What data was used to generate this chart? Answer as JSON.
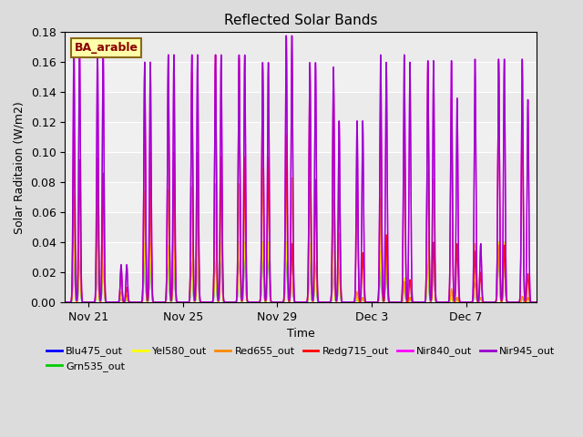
{
  "title": "Reflected Solar Bands",
  "xlabel": "Time",
  "ylabel": "Solar Raditaion (W/m2)",
  "annotation": "BA_arable",
  "ylim": [
    0,
    0.18
  ],
  "yticks": [
    0.0,
    0.02,
    0.04,
    0.06,
    0.08,
    0.1,
    0.12,
    0.14,
    0.16,
    0.18
  ],
  "xtick_labels": [
    "Nov 21",
    "Nov 25",
    "Nov 29",
    "Dec 3",
    "Dec 7"
  ],
  "xtick_positions": [
    1,
    5,
    9,
    13,
    17
  ],
  "series": [
    {
      "label": "Blu475_out",
      "color": "#0000FF"
    },
    {
      "label": "Grn535_out",
      "color": "#00CC00"
    },
    {
      "label": "Yel580_out",
      "color": "#FFFF00"
    },
    {
      "label": "Red655_out",
      "color": "#FF8800"
    },
    {
      "label": "Redg715_out",
      "color": "#FF0000"
    },
    {
      "label": "Nir840_out",
      "color": "#FF00FF"
    },
    {
      "label": "Nir945_out",
      "color": "#9900CC"
    }
  ],
  "bg_color": "#DCDCDC",
  "plot_bg_color": "#F0F0F0",
  "n_days": 20,
  "peaks_per_series": {
    "Blu475_out": [
      0.039,
      0.036,
      0.004,
      0.039,
      0.036,
      0.038,
      0.039,
      0.039,
      0.039,
      0.039,
      0.038,
      0.033,
      0.003,
      0.033,
      0.016,
      0.039,
      0.004,
      0.02,
      0.039,
      0.003
    ],
    "Grn535_out": [
      0.04,
      0.037,
      0.004,
      0.039,
      0.037,
      0.039,
      0.04,
      0.04,
      0.04,
      0.04,
      0.039,
      0.034,
      0.003,
      0.034,
      0.016,
      0.04,
      0.004,
      0.02,
      0.04,
      0.003
    ],
    "Yel580_out": [
      0.04,
      0.037,
      0.004,
      0.039,
      0.037,
      0.039,
      0.04,
      0.04,
      0.04,
      0.04,
      0.039,
      0.034,
      0.003,
      0.034,
      0.016,
      0.04,
      0.004,
      0.02,
      0.04,
      0.003
    ],
    "Red655_out": [
      0.07,
      0.064,
      0.007,
      0.074,
      0.075,
      0.077,
      0.079,
      0.079,
      0.09,
      0.09,
      0.08,
      0.069,
      0.007,
      0.07,
      0.014,
      0.087,
      0.009,
      0.039,
      0.038,
      0.004
    ],
    "Redg715_out": [
      0.115,
      0.096,
      0.023,
      0.154,
      0.153,
      0.153,
      0.165,
      0.163,
      0.156,
      0.112,
      0.16,
      0.147,
      0.082,
      0.135,
      0.12,
      0.156,
      0.136,
      0.034,
      0.16,
      0.135
    ],
    "Nir840_out": [
      0.172,
      0.168,
      0.025,
      0.16,
      0.165,
      0.165,
      0.165,
      0.165,
      0.16,
      0.178,
      0.16,
      0.157,
      0.121,
      0.165,
      0.165,
      0.161,
      0.161,
      0.162,
      0.162,
      0.162
    ],
    "Nir945_out": [
      0.172,
      0.168,
      0.025,
      0.16,
      0.165,
      0.165,
      0.165,
      0.165,
      0.16,
      0.178,
      0.16,
      0.157,
      0.121,
      0.165,
      0.165,
      0.161,
      0.161,
      0.162,
      0.162,
      0.162
    ]
  },
  "secondary_peaks_per_series": {
    "Blu475_out": [
      0.039,
      0.036,
      0.003,
      0.039,
      0.036,
      0.038,
      0.039,
      0.039,
      0.039,
      0.039,
      0.038,
      0.033,
      0.003,
      0.033,
      0.003,
      0.039,
      0.003,
      0.003,
      0.039,
      0.003
    ],
    "Grn535_out": [
      0.04,
      0.037,
      0.003,
      0.039,
      0.037,
      0.039,
      0.04,
      0.04,
      0.04,
      0.04,
      0.039,
      0.034,
      0.003,
      0.034,
      0.003,
      0.04,
      0.003,
      0.003,
      0.04,
      0.003
    ],
    "Yel580_out": [
      0.04,
      0.037,
      0.003,
      0.039,
      0.037,
      0.039,
      0.04,
      0.04,
      0.04,
      0.04,
      0.039,
      0.034,
      0.003,
      0.034,
      0.003,
      0.04,
      0.003,
      0.003,
      0.04,
      0.003
    ],
    "Red655_out": [
      0.07,
      0.064,
      0.005,
      0.074,
      0.075,
      0.077,
      0.079,
      0.079,
      0.09,
      0.083,
      0.08,
      0.046,
      0.003,
      0.043,
      0.003,
      0.082,
      0.003,
      0.003,
      0.038,
      0.003
    ],
    "Redg715_out": [
      0.095,
      0.086,
      0.01,
      0.1,
      0.1,
      0.1,
      0.097,
      0.097,
      0.097,
      0.039,
      0.082,
      0.079,
      0.033,
      0.045,
      0.015,
      0.04,
      0.039,
      0.02,
      0.038,
      0.019
    ],
    "Nir840_out": [
      0.172,
      0.168,
      0.025,
      0.16,
      0.165,
      0.165,
      0.165,
      0.165,
      0.16,
      0.178,
      0.16,
      0.121,
      0.121,
      0.16,
      0.16,
      0.161,
      0.136,
      0.039,
      0.162,
      0.135
    ],
    "Nir945_out": [
      0.172,
      0.168,
      0.025,
      0.16,
      0.165,
      0.165,
      0.165,
      0.165,
      0.16,
      0.178,
      0.16,
      0.121,
      0.121,
      0.16,
      0.16,
      0.161,
      0.136,
      0.039,
      0.162,
      0.135
    ]
  }
}
